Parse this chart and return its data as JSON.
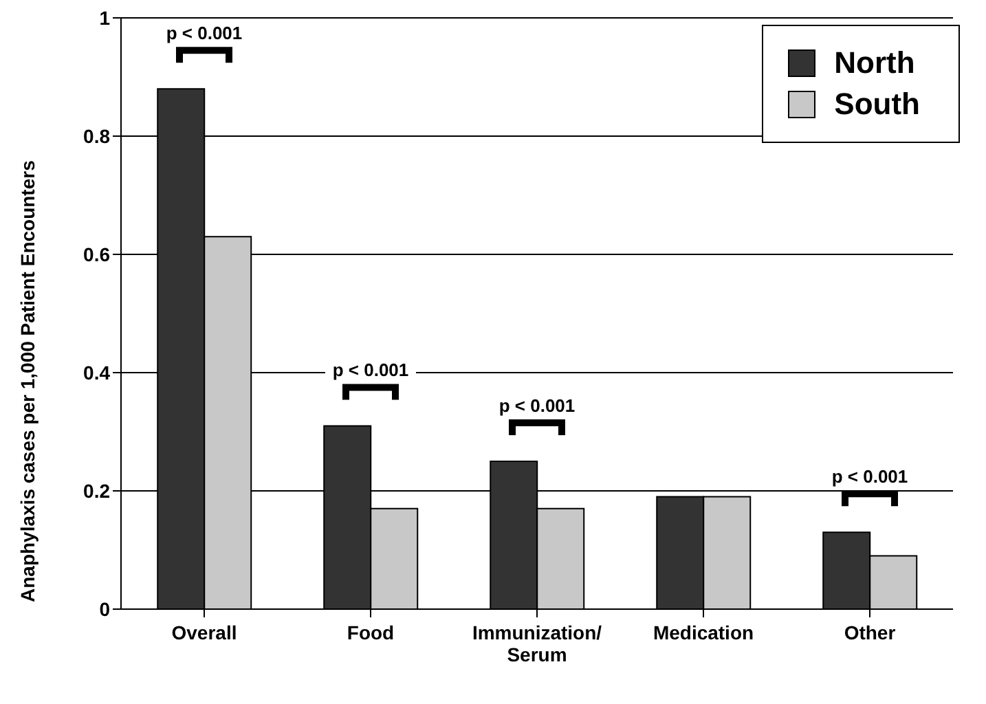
{
  "chart_data": {
    "type": "bar",
    "ylabel": "Anaphylaxis cases per 1,000 Patient Encounters",
    "categories": [
      "Overall",
      "Food",
      "Immunization/ Serum",
      "Medication",
      "Other"
    ],
    "series": [
      {
        "name": "North",
        "color": "#333333",
        "values": [
          0.88,
          0.31,
          0.25,
          0.19,
          0.13
        ]
      },
      {
        "name": "South",
        "color": "#c8c8c8",
        "values": [
          0.63,
          0.17,
          0.17,
          0.19,
          0.09
        ]
      }
    ],
    "ylim": [
      0,
      1
    ],
    "yticks": [
      0,
      0.2,
      0.4,
      0.6,
      0.8,
      1
    ],
    "grid": "y",
    "legend": "top right",
    "annotations": [
      "p < 0.001",
      "p < 0.001",
      "p < 0.001",
      "p < 0.001"
    ]
  }
}
